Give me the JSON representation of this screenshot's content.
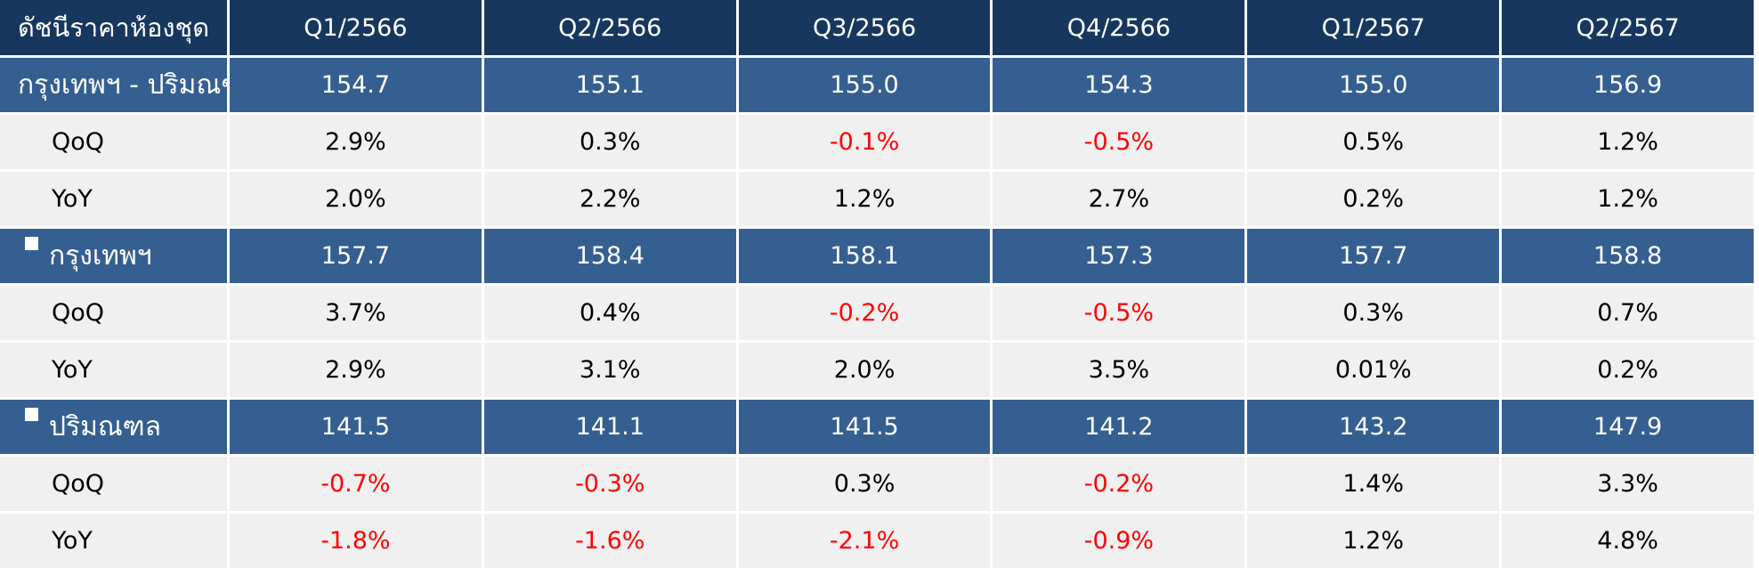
{
  "header": {
    "label": "ดัชนีราคาห้องชุด",
    "quarters": [
      "Q1/2566",
      "Q2/2566",
      "Q3/2566",
      "Q4/2566",
      "Q1/2567",
      "Q2/2567"
    ]
  },
  "groups": [
    {
      "label": "กรุงเทพฯ - ปริมณฑล",
      "bullet": false,
      "index": [
        "154.7",
        "155.1",
        "155.0",
        "154.3",
        "155.0",
        "156.9"
      ],
      "qoq_label": "QoQ",
      "qoq": [
        "2.9%",
        "0.3%",
        "-0.1%",
        "-0.5%",
        "0.5%",
        "1.2%"
      ],
      "yoy_label": "YoY",
      "yoy": [
        "2.0%",
        "2.2%",
        "1.2%",
        "2.7%",
        "0.2%",
        "1.2%"
      ]
    },
    {
      "label": "กรุงเทพฯ",
      "bullet": true,
      "index": [
        "157.7",
        "158.4",
        "158.1",
        "157.3",
        "157.7",
        "158.8"
      ],
      "qoq_label": "QoQ",
      "qoq": [
        "3.7%",
        "0.4%",
        "-0.2%",
        "-0.5%",
        "0.3%",
        "0.7%"
      ],
      "yoy_label": "YoY",
      "yoy": [
        "2.9%",
        "3.1%",
        "2.0%",
        "3.5%",
        "0.01%",
        "0.2%"
      ]
    },
    {
      "label": "ปริมณฑล",
      "bullet": true,
      "index": [
        "141.5",
        "141.1",
        "141.5",
        "141.2",
        "143.2",
        "147.9"
      ],
      "qoq_label": "QoQ",
      "qoq": [
        "-0.7%",
        "-0.3%",
        "0.3%",
        "-0.2%",
        "1.4%",
        "3.3%"
      ],
      "yoy_label": "YoY",
      "yoy": [
        "-1.8%",
        "-1.6%",
        "-2.1%",
        "-0.9%",
        "1.2%",
        "4.8%"
      ]
    }
  ],
  "colors": {
    "header_bg": "#17375e",
    "group_bg": "#365f91",
    "sub_bg": "#f0f0f0",
    "negative": "#ff0000"
  }
}
